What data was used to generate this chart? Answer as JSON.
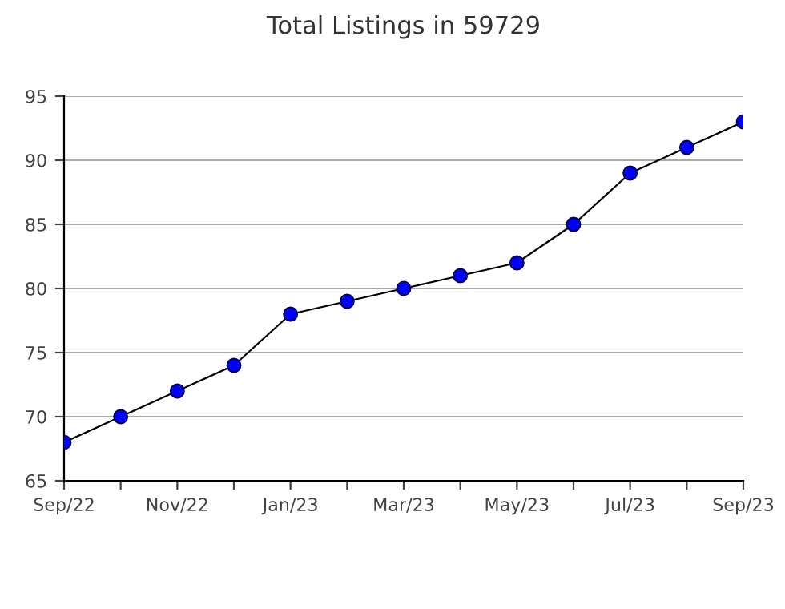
{
  "chart_data": {
    "type": "line",
    "title": "Total Listings in 59729",
    "categories": [
      "Sep/22",
      null,
      "Nov/22",
      null,
      "Jan/23",
      null,
      "Mar/23",
      null,
      "May/23",
      null,
      "Jul/23",
      null,
      "Sep/23"
    ],
    "series": [
      {
        "color": "#0000ff",
        "values": [
          68,
          70,
          72,
          74,
          78,
          79,
          80,
          81,
          82,
          85,
          89,
          91,
          93
        ]
      }
    ],
    "ylim": [
      65,
      95
    ],
    "yticks": [
      65,
      70,
      75,
      80,
      85,
      90,
      95
    ],
    "grid": "y",
    "marker": "circle",
    "line_style": "solid",
    "legend": false
  }
}
